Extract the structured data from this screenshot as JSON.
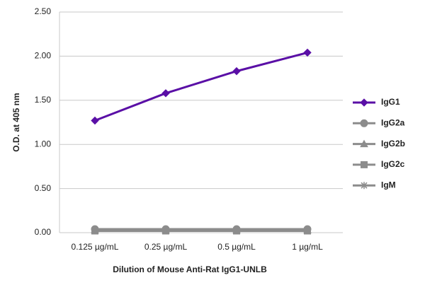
{
  "chart_data": {
    "type": "line",
    "x_label": "Dilution of Mouse Anti-Rat IgG1-UNLB",
    "y_label": "O.D. at 405 nm",
    "categories": [
      "0.125 µg/mL",
      "0.25 µg/mL",
      "0.5 µg/mL",
      "1 µg/mL"
    ],
    "ylim": [
      0,
      2.5
    ],
    "yticks": [
      {
        "value": 0,
        "label": "0.00"
      },
      {
        "value": 0.5,
        "label": "0.50"
      },
      {
        "value": 1,
        "label": "1.00"
      },
      {
        "value": 1.5,
        "label": "1.50"
      },
      {
        "value": 2,
        "label": "2.00"
      },
      {
        "value": 2.5,
        "label": "2.50"
      }
    ],
    "grid": true,
    "legend": "right",
    "series": [
      {
        "name": "IgG1",
        "color": "#5a0fa6",
        "marker": "diamond",
        "values": [
          1.27,
          1.58,
          1.83,
          2.04
        ]
      },
      {
        "name": "IgG2a",
        "color": "#8c8c8c",
        "marker": "circle",
        "values": [
          0.04,
          0.04,
          0.04,
          0.04
        ]
      },
      {
        "name": "IgG2b",
        "color": "#8c8c8c",
        "marker": "triangle",
        "values": [
          0.03,
          0.03,
          0.03,
          0.03
        ]
      },
      {
        "name": "IgG2c",
        "color": "#8c8c8c",
        "marker": "square",
        "values": [
          0.02,
          0.02,
          0.02,
          0.02
        ]
      },
      {
        "name": "IgM",
        "color": "#8c8c8c",
        "marker": "star",
        "values": [
          0.02,
          0.02,
          0.02,
          0.02
        ]
      }
    ]
  }
}
